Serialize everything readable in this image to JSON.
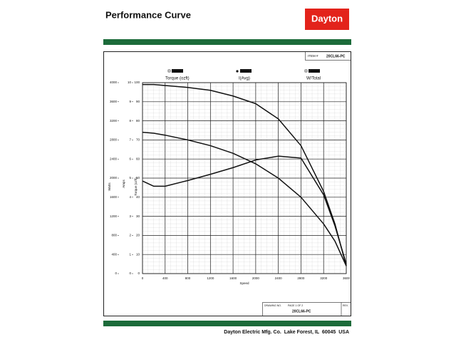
{
  "header": {
    "title": "Performance Curve",
    "logo": "Dayton",
    "item_label": "ITEM #",
    "item": "20CL66-PC"
  },
  "chart_data": {
    "type": "line",
    "x_label": "Speed",
    "y_label": "Torque (ozft)",
    "y2_label": "Amps",
    "y3_label": "Watts",
    "x": [
      0,
      200,
      400,
      800,
      1200,
      1600,
      2000,
      2400,
      2800,
      3200,
      3400,
      3600
    ],
    "xlim": [
      0,
      3600
    ],
    "xticks": [
      0,
      400,
      800,
      1200,
      1600,
      2000,
      2400,
      2800,
      3200,
      3600
    ],
    "ylim": [
      0,
      100
    ],
    "yticks": [
      0,
      10,
      20,
      30,
      40,
      50,
      60,
      70,
      80,
      90,
      100
    ],
    "y2lim": [
      0,
      10
    ],
    "y2ticks": [
      0,
      1,
      2,
      3,
      4,
      5,
      6,
      7,
      8,
      9,
      10
    ],
    "y3lim": [
      0,
      4000
    ],
    "y3ticks": [
      0,
      400,
      800,
      1200,
      1600,
      2000,
      2400,
      2800,
      3200,
      3600,
      4000
    ],
    "grid": true,
    "series": [
      {
        "name": "Torque (ozft)",
        "color": "#111111",
        "axis": "y",
        "values": [
          99,
          99,
          98.5,
          97.5,
          96,
          93,
          89,
          81,
          67,
          43,
          26,
          4
        ]
      },
      {
        "name": "I(Avg)",
        "color": "#111111",
        "axis": "y2",
        "values": [
          7.4,
          7.35,
          7.25,
          7.0,
          6.7,
          6.3,
          5.75,
          5.0,
          4.0,
          2.6,
          1.7,
          0.4
        ]
      },
      {
        "name": "W/Total",
        "color": "#111111",
        "axis": "y3",
        "values": [
          1940,
          1830,
          1830,
          1950,
          2080,
          2220,
          2380,
          2460,
          2420,
          1650,
          1000,
          200
        ]
      }
    ]
  },
  "footer": {
    "drawing_no_label": "DRAWING NO.",
    "page": "PAGE 1 OF 2",
    "drawing_no": "20CL66-PC",
    "rev_label": "REV.",
    "company": "Dayton Electric Mfg. Co.  Lake Forest, IL  60045  USA"
  }
}
